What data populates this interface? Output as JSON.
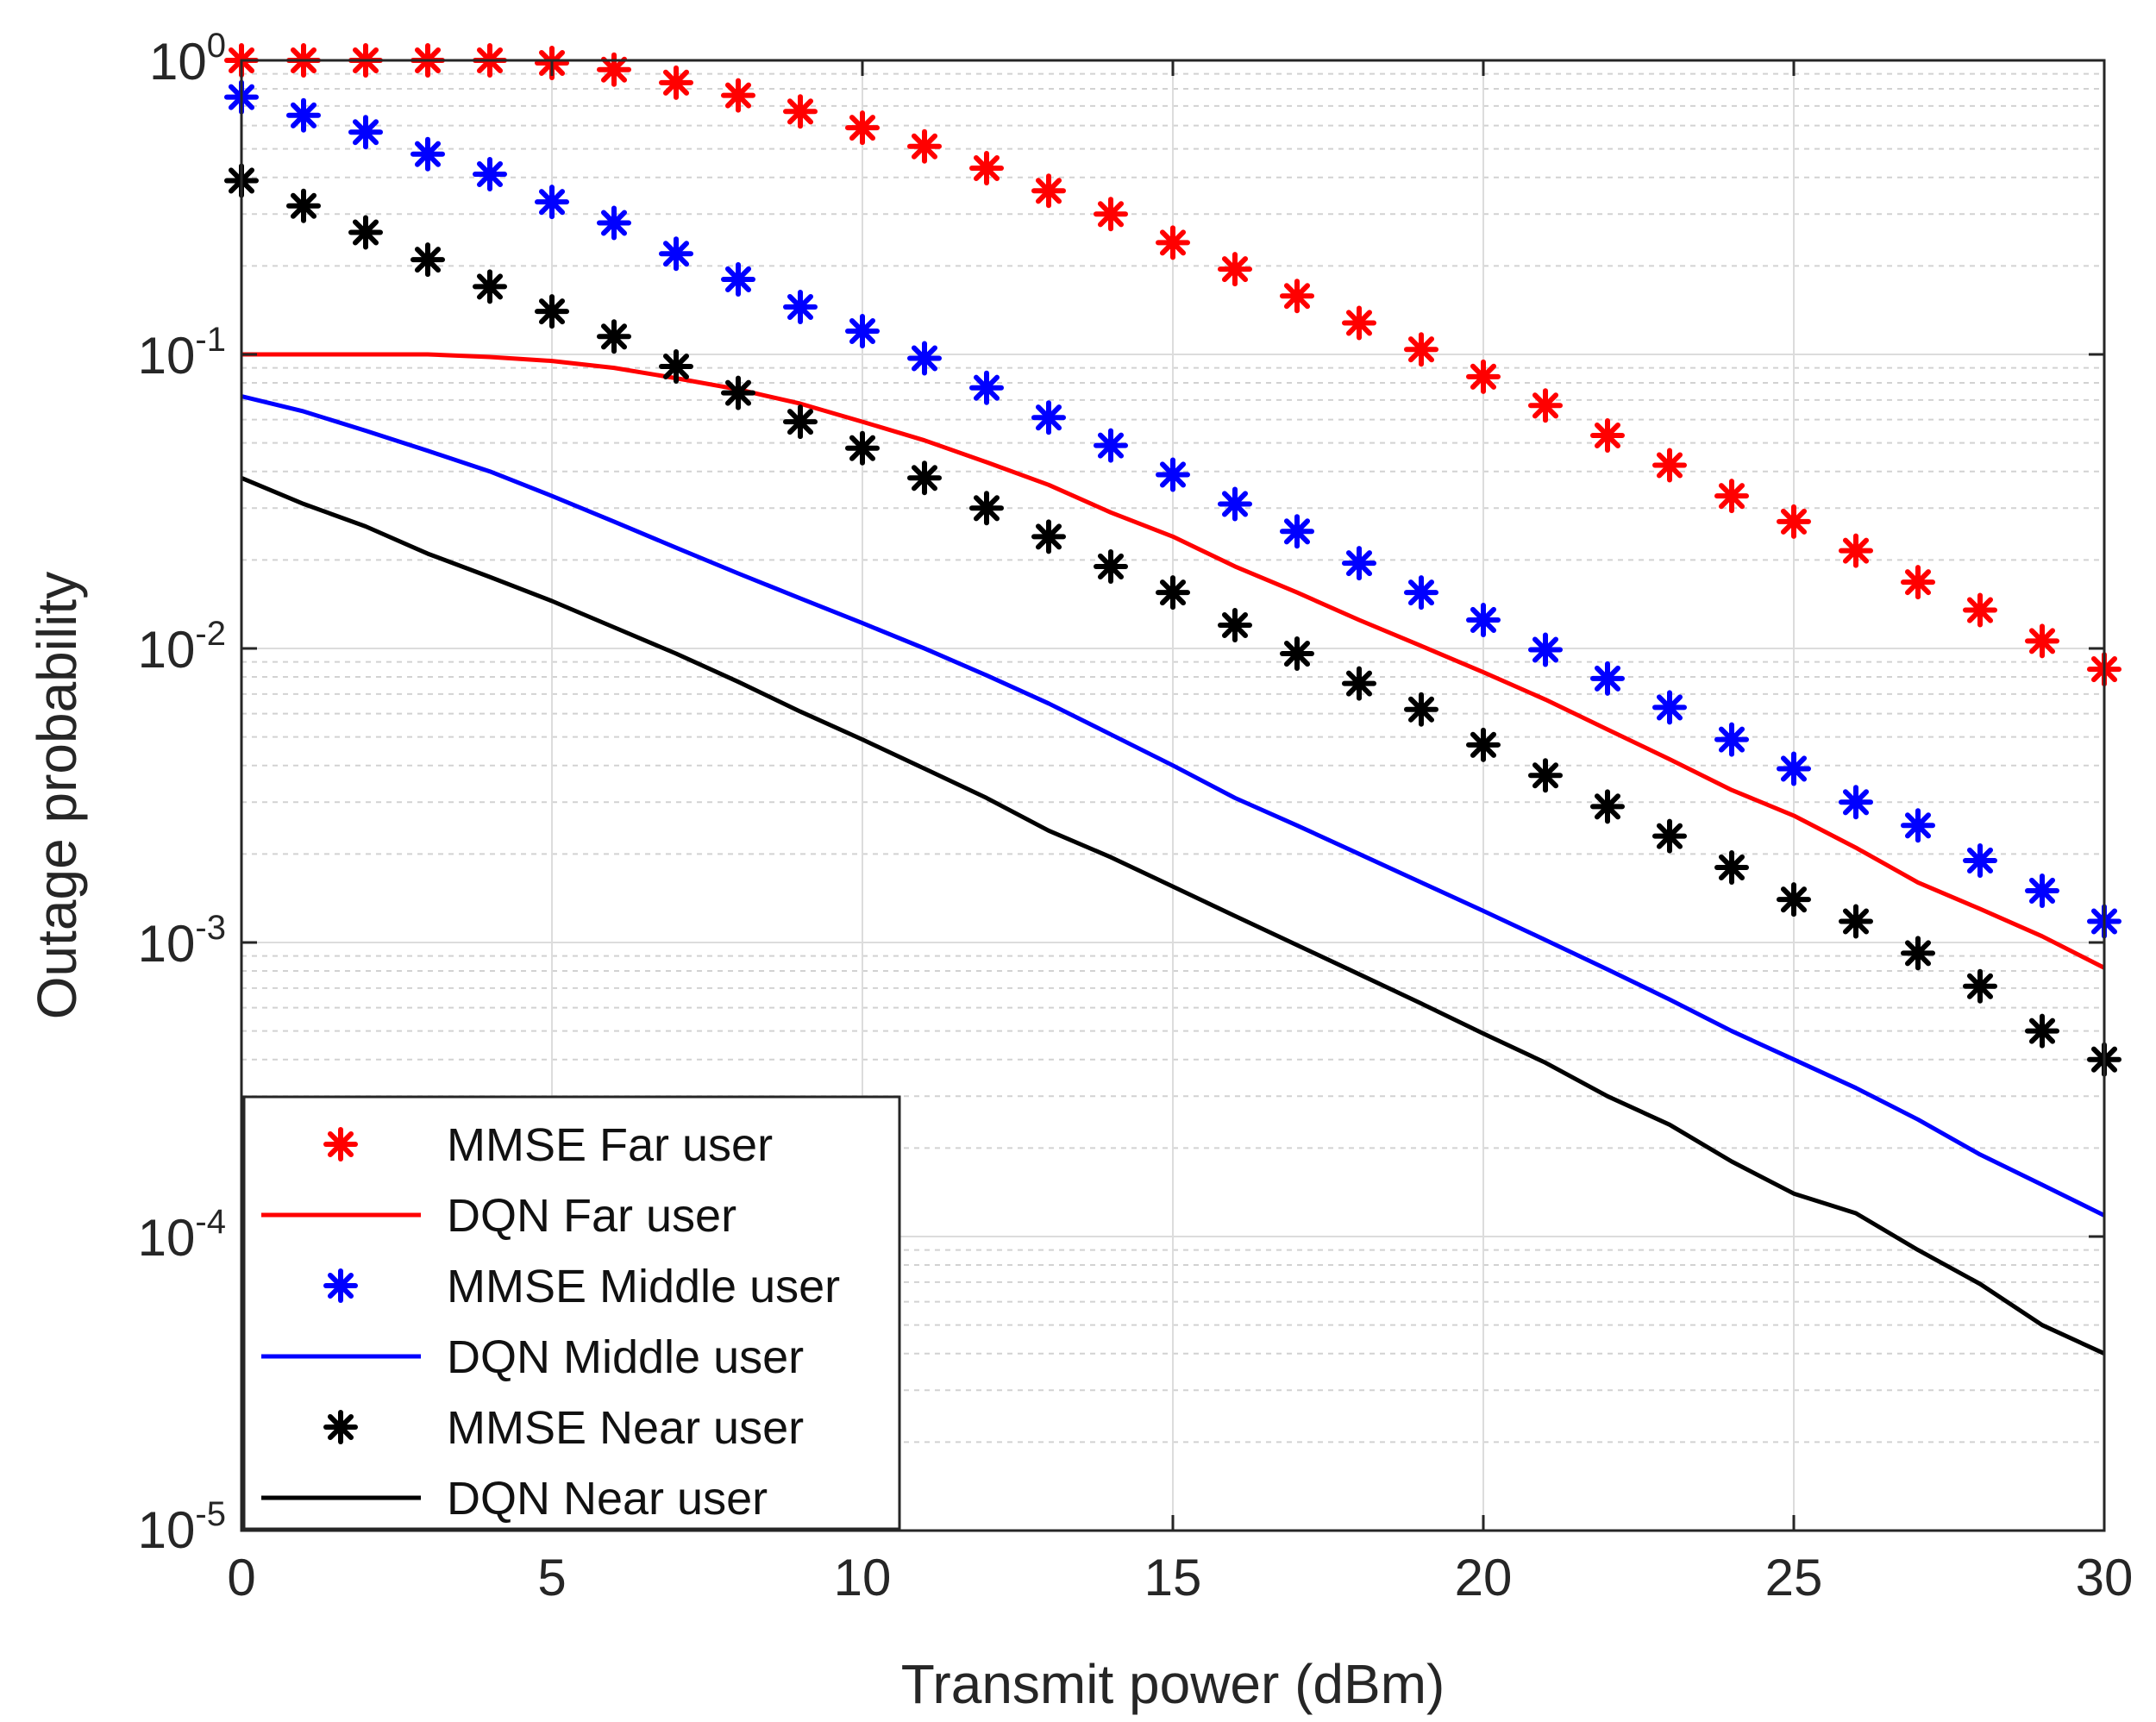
{
  "chart_data": {
    "type": "line",
    "title": "",
    "xlabel": "Transmit power (dBm)",
    "ylabel": "Outage probability",
    "xlim": [
      0,
      30
    ],
    "ylim": [
      1e-05,
      1
    ],
    "yscale": "log",
    "grid": true,
    "legend_position": "bottom-left",
    "x_ticks": [
      0,
      5,
      10,
      15,
      20,
      25,
      30
    ],
    "y_ticks": [
      {
        "value": 1,
        "base": "10",
        "exp": "0"
      },
      {
        "value": 0.1,
        "base": "10",
        "exp": "-1"
      },
      {
        "value": 0.01,
        "base": "10",
        "exp": "-2"
      },
      {
        "value": 0.001,
        "base": "10",
        "exp": "-3"
      },
      {
        "value": 0.0001,
        "base": "10",
        "exp": "-4"
      },
      {
        "value": 1e-05,
        "base": "10",
        "exp": "-5"
      }
    ],
    "x": [
      0,
      1,
      2,
      3,
      4,
      5,
      6,
      7,
      8,
      9,
      10,
      11,
      12,
      13,
      14,
      15,
      16,
      17,
      18,
      19,
      20,
      21,
      22,
      23,
      24,
      25,
      26,
      27,
      28,
      29,
      30
    ],
    "series": [
      {
        "name": "MMSE Far user",
        "style": "marker",
        "marker": "asterisk",
        "color": "#ff0000",
        "values": [
          1.0,
          1.0,
          1.0,
          1.0,
          1.0,
          0.98,
          0.93,
          0.84,
          0.76,
          0.67,
          0.59,
          0.51,
          0.43,
          0.36,
          0.3,
          0.24,
          0.195,
          0.158,
          0.128,
          0.104,
          0.084,
          0.067,
          0.053,
          0.042,
          0.033,
          0.027,
          0.0215,
          0.0168,
          0.0135,
          0.0106,
          0.0085
        ]
      },
      {
        "name": "DQN Far user",
        "style": "line",
        "color": "#ff0000",
        "values": [
          0.1,
          0.1,
          0.1,
          0.1,
          0.098,
          0.095,
          0.09,
          0.083,
          0.076,
          0.068,
          0.059,
          0.051,
          0.043,
          0.036,
          0.029,
          0.024,
          0.019,
          0.0155,
          0.0125,
          0.0102,
          0.0083,
          0.0067,
          0.0053,
          0.0042,
          0.0033,
          0.0027,
          0.0021,
          0.0016,
          0.0013,
          0.00105,
          0.00082
        ]
      },
      {
        "name": "MMSE Middle user",
        "style": "marker",
        "marker": "asterisk",
        "color": "#0000ff",
        "values": [
          0.75,
          0.65,
          0.57,
          0.48,
          0.41,
          0.33,
          0.28,
          0.22,
          0.18,
          0.145,
          0.12,
          0.097,
          0.077,
          0.061,
          0.049,
          0.039,
          0.031,
          0.025,
          0.0195,
          0.0155,
          0.0125,
          0.0099,
          0.0079,
          0.0063,
          0.0049,
          0.0039,
          0.003,
          0.0025,
          0.0019,
          0.0015,
          0.00118
        ]
      },
      {
        "name": "DQN Middle user",
        "style": "line",
        "color": "#0000ff",
        "values": [
          0.072,
          0.064,
          0.055,
          0.047,
          0.04,
          0.033,
          0.027,
          0.022,
          0.018,
          0.0148,
          0.0122,
          0.01,
          0.0081,
          0.0065,
          0.0051,
          0.004,
          0.0031,
          0.0025,
          0.002,
          0.0016,
          0.00128,
          0.00102,
          0.00081,
          0.00064,
          0.0005,
          0.0004,
          0.00032,
          0.00025,
          0.00019,
          0.00015,
          0.000118
        ]
      },
      {
        "name": "MMSE Near user",
        "style": "marker",
        "marker": "asterisk",
        "color": "#000000",
        "values": [
          0.39,
          0.32,
          0.26,
          0.21,
          0.17,
          0.14,
          0.115,
          0.091,
          0.074,
          0.059,
          0.048,
          0.038,
          0.03,
          0.024,
          0.019,
          0.0155,
          0.012,
          0.0096,
          0.0076,
          0.0062,
          0.0047,
          0.0037,
          0.0029,
          0.0023,
          0.0018,
          0.0014,
          0.00118,
          0.00092,
          0.00071,
          0.0005,
          0.0004
        ]
      },
      {
        "name": "DQN Near user",
        "style": "line",
        "color": "#000000",
        "values": [
          0.038,
          0.031,
          0.026,
          0.021,
          0.0175,
          0.0145,
          0.0118,
          0.0096,
          0.0077,
          0.0061,
          0.0049,
          0.0039,
          0.0031,
          0.0024,
          0.00195,
          0.00155,
          0.00123,
          0.00098,
          0.00078,
          0.00062,
          0.00049,
          0.00039,
          0.0003,
          0.00024,
          0.00018,
          0.00014,
          0.00012,
          9e-05,
          6.9e-05,
          5e-05,
          4e-05
        ]
      }
    ]
  }
}
